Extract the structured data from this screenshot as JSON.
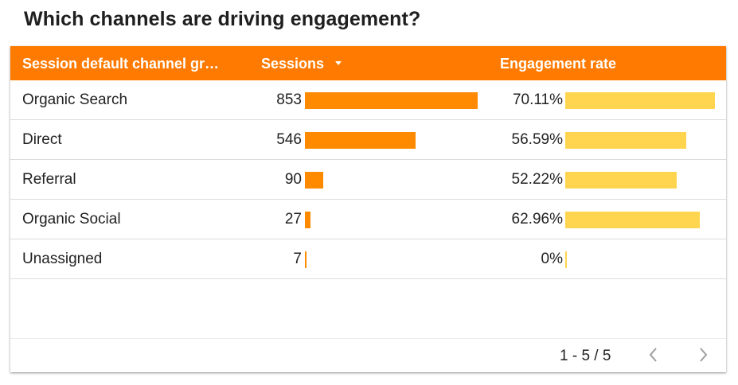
{
  "title": "Which channels are driving engagement?",
  "table": {
    "headers": {
      "channel": "Session default channel gr…",
      "sessions": "Sessions",
      "engagement": "Engagement rate"
    },
    "rows": [
      {
        "channel": "Organic Search",
        "sessions": "853",
        "engagement": "70.11%"
      },
      {
        "channel": "Direct",
        "sessions": "546",
        "engagement": "56.59%"
      },
      {
        "channel": "Referral",
        "sessions": "90",
        "engagement": "52.22%"
      },
      {
        "channel": "Organic Social",
        "sessions": "27",
        "engagement": "62.96%"
      },
      {
        "channel": "Unassigned",
        "sessions": "7",
        "engagement": "0%"
      }
    ],
    "sessions_values": [
      853,
      546,
      90,
      27,
      7
    ],
    "engagement_values": [
      70.11,
      56.59,
      52.22,
      62.96,
      0
    ]
  },
  "pagination": {
    "label": "1 - 5 / 5",
    "prev_icon": "chevron-left-icon",
    "next_icon": "chevron-right-icon"
  },
  "colors": {
    "header_bg": "#ff7a00",
    "sessions_bar": "#ff8a00",
    "engagement_bar": "#ffd54f"
  }
}
